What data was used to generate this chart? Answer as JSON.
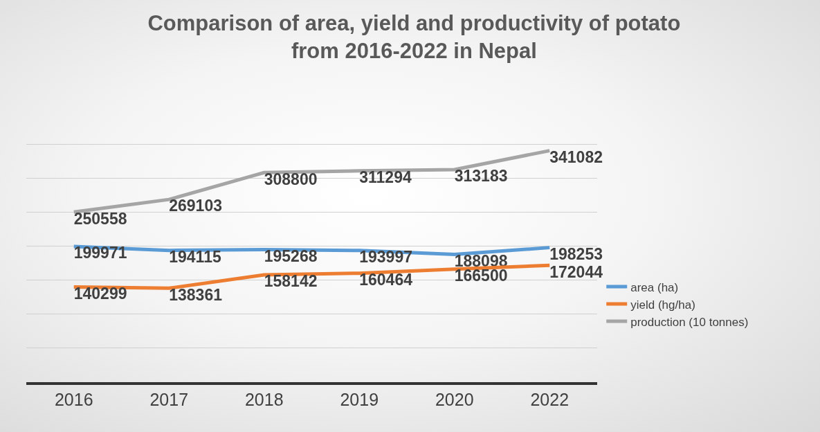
{
  "chart_data": {
    "type": "line",
    "title": "Comparison of area, yield and productivity of potato from 2016-2022 in Nepal",
    "categories": [
      "2016",
      "2017",
      "2018",
      "2019",
      "2020",
      "2022"
    ],
    "series": [
      {
        "name": "area (ha)",
        "color": "#5b9bd5",
        "values": [
          199971,
          194115,
          195268,
          193997,
          188098,
          198253
        ]
      },
      {
        "name": "yield (hg/ha)",
        "color": "#ed7d31",
        "values": [
          140299,
          138361,
          158142,
          160464,
          166500,
          172044
        ]
      },
      {
        "name": "production (10 tonnes)",
        "color": "#a5a5a5",
        "values": [
          250558,
          269103,
          308800,
          311294,
          313183,
          341082
        ]
      }
    ],
    "tick_labels": "x",
    "grid": "y",
    "legend": "right",
    "data_labels": true,
    "marker": "none",
    "line_style": "solid"
  }
}
